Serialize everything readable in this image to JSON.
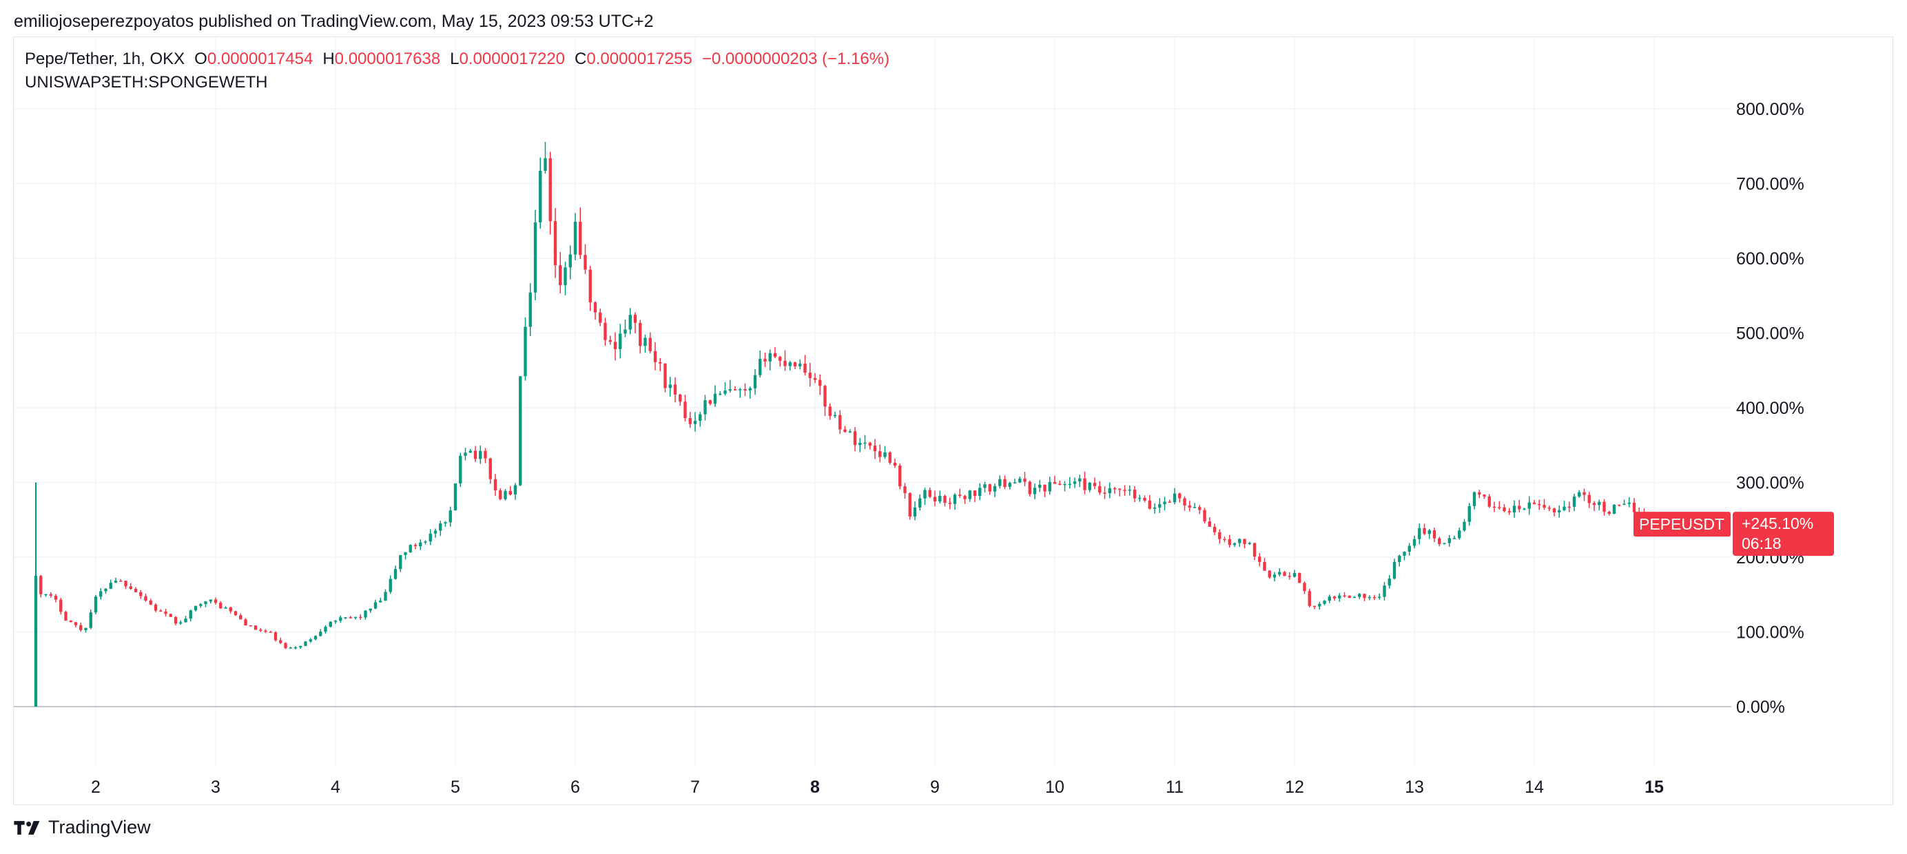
{
  "header": {
    "publisher_line": "emiliojoseperezpoyatos published on TradingView.com, May 15, 2023 09:53 UTC+2"
  },
  "legend": {
    "symbol_desc": "Pepe/Tether, 1h, OKX",
    "open_label": "O",
    "open_value": "0.0000017454",
    "high_label": "H",
    "high_value": "0.0000017638",
    "low_label": "L",
    "low_value": "0.0000017220",
    "close_label": "C",
    "close_value": "0.0000017255",
    "change": "−0.0000000203 (−1.16%)",
    "compare_symbol": "UNISWAP3ETH:SPONGEWETH"
  },
  "price_tag": {
    "symbol": "PEPEUSDT",
    "value": "+245.10%",
    "countdown": "06:18",
    "value_number": 245.1
  },
  "colors": {
    "up": "#089981",
    "down": "#f23645",
    "grid": "#f0f3fa",
    "zero_line": "#b2b5be",
    "text": "#131722",
    "tag": "#f23645"
  },
  "footer": {
    "brand": "TradingView",
    "logo_icon": "tradingview-logo-icon"
  },
  "chart_data": {
    "type": "candlestick",
    "y_unit": "percent",
    "ylim": [
      -80,
      820
    ],
    "y_ticks": [
      0,
      100,
      200,
      300,
      400,
      500,
      600,
      700,
      800
    ],
    "y_tick_labels": [
      "0.00%",
      "100.00%",
      "200.00%",
      "300.00%",
      "400.00%",
      "500.00%",
      "600.00%",
      "700.00%",
      "800.00%"
    ],
    "xlim": [
      1.3,
      16.9
    ],
    "x_ticks": [
      2,
      3,
      4,
      5,
      6,
      7,
      8,
      9,
      10,
      11,
      12,
      13,
      14,
      15
    ],
    "x_tick_labels": [
      "2",
      "3",
      "4",
      "5",
      "6",
      "7",
      "8",
      "9",
      "10",
      "11",
      "12",
      "13",
      "14",
      "15"
    ],
    "x_bold_ticks": [
      "8",
      "15"
    ],
    "baseline": 0,
    "grid": true,
    "close_series": {
      "x_start": 1.5,
      "x_step": 0.0416667,
      "anchors": [
        [
          1.5,
          175
        ],
        [
          1.55,
          150
        ],
        [
          1.65,
          145
        ],
        [
          1.75,
          118
        ],
        [
          1.9,
          100
        ],
        [
          2.0,
          145
        ],
        [
          2.15,
          172
        ],
        [
          2.3,
          160
        ],
        [
          2.5,
          130
        ],
        [
          2.7,
          110
        ],
        [
          2.9,
          145
        ],
        [
          3.1,
          130
        ],
        [
          3.3,
          105
        ],
        [
          3.45,
          98
        ],
        [
          3.6,
          75
        ],
        [
          3.8,
          90
        ],
        [
          3.95,
          115
        ],
        [
          4.2,
          120
        ],
        [
          4.4,
          145
        ],
        [
          4.55,
          205
        ],
        [
          4.75,
          225
        ],
        [
          4.95,
          248
        ],
        [
          5.05,
          350
        ],
        [
          5.25,
          330
        ],
        [
          5.35,
          280
        ],
        [
          5.5,
          290
        ],
        [
          5.55,
          480
        ],
        [
          5.62,
          530
        ],
        [
          5.68,
          670
        ],
        [
          5.74,
          745
        ],
        [
          5.82,
          580
        ],
        [
          5.9,
          560
        ],
        [
          6.0,
          650
        ],
        [
          6.1,
          555
        ],
        [
          6.2,
          510
        ],
        [
          6.3,
          480
        ],
        [
          6.45,
          520
        ],
        [
          6.55,
          490
        ],
        [
          6.65,
          470
        ],
        [
          6.8,
          420
        ],
        [
          6.95,
          380
        ],
        [
          7.1,
          410
        ],
        [
          7.3,
          420
        ],
        [
          7.45,
          415
        ],
        [
          7.6,
          480
        ],
        [
          7.7,
          460
        ],
        [
          7.8,
          465
        ],
        [
          7.95,
          450
        ],
        [
          8.1,
          400
        ],
        [
          8.3,
          360
        ],
        [
          8.5,
          345
        ],
        [
          8.65,
          330
        ],
        [
          8.8,
          255
        ],
        [
          8.9,
          285
        ],
        [
          9.1,
          275
        ],
        [
          9.3,
          285
        ],
        [
          9.5,
          295
        ],
        [
          9.65,
          305
        ],
        [
          9.8,
          290
        ],
        [
          10.0,
          298
        ],
        [
          10.2,
          300
        ],
        [
          10.4,
          285
        ],
        [
          10.6,
          288
        ],
        [
          10.8,
          265
        ],
        [
          11.0,
          282
        ],
        [
          11.2,
          260
        ],
        [
          11.4,
          220
        ],
        [
          11.6,
          220
        ],
        [
          11.8,
          175
        ],
        [
          12.0,
          178
        ],
        [
          12.15,
          130
        ],
        [
          12.3,
          145
        ],
        [
          12.5,
          150
        ],
        [
          12.7,
          142
        ],
        [
          12.85,
          195
        ],
        [
          13.05,
          240
        ],
        [
          13.2,
          222
        ],
        [
          13.35,
          225
        ],
        [
          13.5,
          282
        ],
        [
          13.65,
          270
        ],
        [
          13.8,
          262
        ],
        [
          14.0,
          270
        ],
        [
          14.2,
          262
        ],
        [
          14.4,
          285
        ],
        [
          14.6,
          262
        ],
        [
          14.8,
          268
        ],
        [
          14.95,
          255
        ],
        [
          15.0,
          245
        ]
      ]
    }
  }
}
